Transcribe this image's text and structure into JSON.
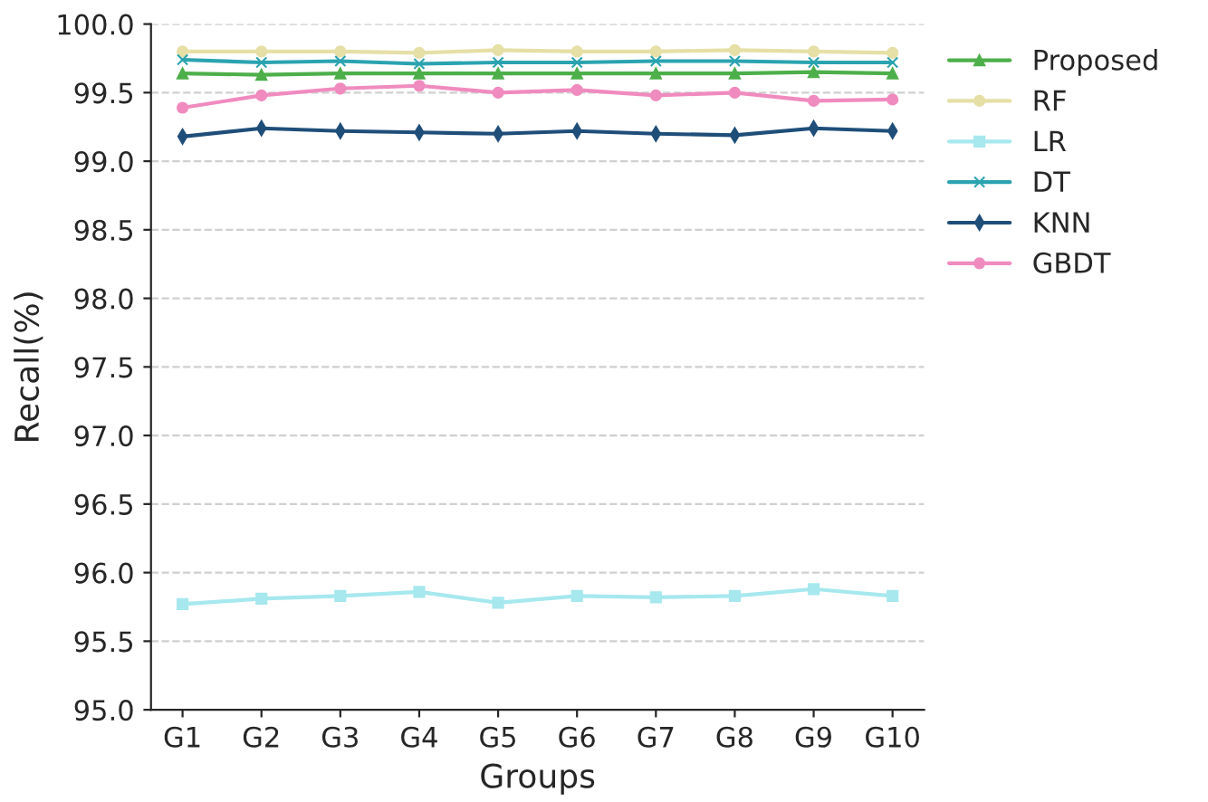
{
  "chart_data": {
    "type": "line",
    "xlabel": "Groups",
    "ylabel": "Recall(%)",
    "categories": [
      "G1",
      "G2",
      "G3",
      "G4",
      "G5",
      "G6",
      "G7",
      "G8",
      "G9",
      "G10"
    ],
    "series": [
      {
        "name": "Proposed",
        "color": "#4daf4a",
        "marker": "triangle",
        "values": [
          99.64,
          99.63,
          99.64,
          99.64,
          99.64,
          99.64,
          99.64,
          99.64,
          99.65,
          99.64
        ]
      },
      {
        "name": "RF",
        "color": "#e6dfa6",
        "marker": "circle",
        "values": [
          99.8,
          99.8,
          99.8,
          99.79,
          99.81,
          99.8,
          99.8,
          99.81,
          99.8,
          99.79
        ]
      },
      {
        "name": "LR",
        "color": "#a6e8ee",
        "marker": "square",
        "values": [
          95.77,
          95.81,
          95.83,
          95.86,
          95.78,
          95.83,
          95.82,
          95.83,
          95.88,
          95.83
        ]
      },
      {
        "name": "DT",
        "color": "#2ba3b0",
        "marker": "cross",
        "values": [
          99.74,
          99.72,
          99.73,
          99.71,
          99.72,
          99.72,
          99.73,
          99.73,
          99.72,
          99.72
        ]
      },
      {
        "name": "KNN",
        "color": "#1f4e79",
        "marker": "diamond",
        "values": [
          99.18,
          99.24,
          99.22,
          99.21,
          99.2,
          99.22,
          99.2,
          99.19,
          99.24,
          99.22
        ]
      },
      {
        "name": "GBDT",
        "color": "#f08bbf",
        "marker": "circle",
        "values": [
          99.39,
          99.48,
          99.53,
          99.55,
          99.5,
          99.52,
          99.48,
          99.5,
          99.44,
          99.45
        ]
      }
    ],
    "ylim": [
      95.0,
      100.0
    ],
    "yticks": [
      {
        "value": 95,
        "label": "95.0"
      },
      {
        "value": 95.5,
        "label": "95.5"
      },
      {
        "value": 96,
        "label": "96.0"
      },
      {
        "value": 96.5,
        "label": "96.5"
      },
      {
        "value": 97,
        "label": "97.0"
      },
      {
        "value": 97.5,
        "label": "97.5"
      },
      {
        "value": 98,
        "label": "98.0"
      },
      {
        "value": 98.5,
        "label": "98.5"
      },
      {
        "value": 99,
        "label": "99.0"
      },
      {
        "value": 99.5,
        "label": "99.5"
      },
      {
        "value": 100,
        "label": "100.0"
      }
    ],
    "grid": "y",
    "legend": "right",
    "line_style": "solid"
  }
}
